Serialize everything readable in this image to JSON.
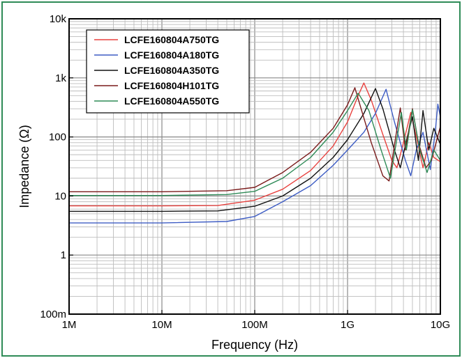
{
  "chart_data": {
    "type": "line",
    "xlabel": "Frequency (Hz)",
    "ylabel": "Impedance (Ω)",
    "xscale": "log",
    "yscale": "log",
    "xlim": [
      1000000,
      10000000000
    ],
    "ylim": [
      0.1,
      10000
    ],
    "x_tick_labels": [
      "1M",
      "10M",
      "100M",
      "1G",
      "10G"
    ],
    "y_tick_labels": [
      "100m",
      "1",
      "10",
      "100",
      "1k",
      "10k"
    ],
    "grid": true,
    "legend": "top-left",
    "series": [
      {
        "name": "LCFE160804A750TG",
        "color": "#e8413e",
        "points": [
          [
            1000000,
            6.8
          ],
          [
            10000000,
            6.8
          ],
          [
            40000000,
            6.9
          ],
          [
            100000000,
            8.5
          ],
          [
            200000000,
            13
          ],
          [
            400000000,
            27
          ],
          [
            700000000,
            70
          ],
          [
            1000000000,
            180
          ],
          [
            1300000000,
            500
          ],
          [
            1500000000,
            820
          ],
          [
            1800000000,
            420
          ],
          [
            2400000000,
            110
          ],
          [
            3000000000,
            40
          ],
          [
            3400000000,
            30
          ],
          [
            4000000000,
            80
          ],
          [
            4800000000,
            260
          ],
          [
            5600000000,
            90
          ],
          [
            6500000000,
            30
          ],
          [
            7500000000,
            80
          ],
          [
            8500000000,
            45
          ],
          [
            10000000000,
            38
          ]
        ]
      },
      {
        "name": "LCFE160804A180TG",
        "color": "#3d5cc4",
        "points": [
          [
            1000000,
            3.5
          ],
          [
            10000000,
            3.5
          ],
          [
            50000000,
            3.7
          ],
          [
            100000000,
            4.5
          ],
          [
            200000000,
            8
          ],
          [
            400000000,
            15
          ],
          [
            700000000,
            33
          ],
          [
            1000000000,
            60
          ],
          [
            1500000000,
            120
          ],
          [
            2000000000,
            250
          ],
          [
            2600000000,
            640
          ],
          [
            3200000000,
            180
          ],
          [
            4200000000,
            40
          ],
          [
            4800000000,
            22
          ],
          [
            5500000000,
            60
          ],
          [
            6500000000,
            120
          ],
          [
            7800000000,
            28
          ],
          [
            8800000000,
            120
          ],
          [
            9400000000,
            360
          ],
          [
            10000000000,
            220
          ]
        ]
      },
      {
        "name": "LCFE160804A350TG",
        "color": "#111111",
        "points": [
          [
            1000000,
            5.5
          ],
          [
            10000000,
            5.5
          ],
          [
            40000000,
            5.6
          ],
          [
            100000000,
            6.7
          ],
          [
            200000000,
            10
          ],
          [
            400000000,
            20
          ],
          [
            700000000,
            45
          ],
          [
            1000000000,
            90
          ],
          [
            1500000000,
            250
          ],
          [
            2000000000,
            660
          ],
          [
            2400000000,
            300
          ],
          [
            3200000000,
            60
          ],
          [
            3700000000,
            30
          ],
          [
            4400000000,
            100
          ],
          [
            5000000000,
            220
          ],
          [
            5800000000,
            40
          ],
          [
            6500000000,
            280
          ],
          [
            7500000000,
            60
          ],
          [
            8500000000,
            140
          ],
          [
            10000000000,
            75
          ]
        ]
      },
      {
        "name": "LCFE160804H101TG",
        "color": "#7a1a1a",
        "points": [
          [
            1000000,
            11.8
          ],
          [
            10000000,
            11.8
          ],
          [
            50000000,
            12.3
          ],
          [
            100000000,
            14
          ],
          [
            200000000,
            25
          ],
          [
            400000000,
            55
          ],
          [
            700000000,
            140
          ],
          [
            1000000000,
            350
          ],
          [
            1200000000,
            680
          ],
          [
            1400000000,
            300
          ],
          [
            1800000000,
            80
          ],
          [
            2400000000,
            22
          ],
          [
            2800000000,
            18
          ],
          [
            3300000000,
            100
          ],
          [
            3700000000,
            310
          ],
          [
            4200000000,
            60
          ],
          [
            5000000000,
            300
          ],
          [
            5800000000,
            80
          ],
          [
            7000000000,
            30
          ],
          [
            8000000000,
            40
          ],
          [
            10000000000,
            150
          ]
        ]
      },
      {
        "name": "LCFE160804A550TG",
        "color": "#2e8b57",
        "points": [
          [
            1000000,
            10.2
          ],
          [
            10000000,
            10.2
          ],
          [
            50000000,
            10.6
          ],
          [
            100000000,
            12
          ],
          [
            200000000,
            20
          ],
          [
            400000000,
            45
          ],
          [
            700000000,
            120
          ],
          [
            1000000000,
            280
          ],
          [
            1300000000,
            550
          ],
          [
            1700000000,
            280
          ],
          [
            2300000000,
            60
          ],
          [
            2900000000,
            20
          ],
          [
            3300000000,
            70
          ],
          [
            3800000000,
            260
          ],
          [
            4300000000,
            60
          ],
          [
            5000000000,
            290
          ],
          [
            6000000000,
            60
          ],
          [
            7200000000,
            25
          ],
          [
            8500000000,
            60
          ],
          [
            10000000000,
            40
          ]
        ]
      }
    ]
  }
}
